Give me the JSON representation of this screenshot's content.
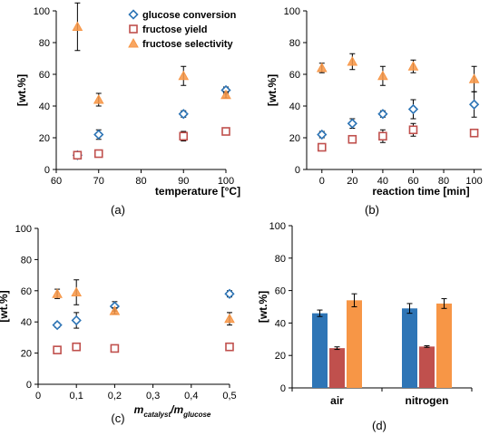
{
  "colors": {
    "glucose": "#2E75B6",
    "fructose_yield": "#C0504D",
    "selectivity": "#F79646",
    "axis": "#000000",
    "tick_text": "#000000"
  },
  "chart_data": [
    {
      "panel": "(a)",
      "type": "scatter",
      "xlabel": "temperature  [°C]",
      "ylabel": "[wt.%]",
      "xlim": [
        60,
        100
      ],
      "ylim": [
        0,
        100
      ],
      "xticks": [
        "60",
        "70",
        "80",
        "90",
        "100"
      ],
      "yticks": [
        "0",
        "20",
        "40",
        "60",
        "80",
        "100"
      ],
      "grid": false,
      "legend": [
        "glucose conversion",
        "fructose yield",
        "fructose selectivity"
      ],
      "legend_position": "top-right",
      "series": [
        {
          "name": "glucose conversion",
          "marker": "diamond",
          "x": [
            65,
            70,
            90,
            100
          ],
          "y": [
            9,
            22,
            35,
            50
          ],
          "err": [
            2,
            3,
            2,
            2
          ]
        },
        {
          "name": "fructose yield",
          "marker": "square",
          "x": [
            65,
            70,
            90,
            100
          ],
          "y": [
            9,
            10,
            21,
            24
          ],
          "err": [
            1,
            1,
            3,
            1.5
          ]
        },
        {
          "name": "fructose selectivity",
          "marker": "triangle",
          "x": [
            65,
            70,
            90,
            100
          ],
          "y": [
            90,
            44,
            59,
            47
          ],
          "err": [
            15,
            4,
            6,
            2
          ]
        }
      ]
    },
    {
      "panel": "(b)",
      "type": "scatter",
      "xlabel": "reaction time  [min]",
      "ylabel": "[wt.%]",
      "xlim": [
        -10,
        105
      ],
      "ylim": [
        0,
        100
      ],
      "xticks": [
        "0",
        "20",
        "40",
        "60",
        "80",
        "100"
      ],
      "yticks": [
        "0",
        "20",
        "40",
        "60",
        "80",
        "100"
      ],
      "grid": false,
      "series": [
        {
          "name": "glucose conversion",
          "marker": "diamond",
          "x": [
            0,
            20,
            40,
            60,
            100
          ],
          "y": [
            22,
            29,
            35,
            38,
            41
          ],
          "err": [
            2,
            3,
            2,
            6,
            8
          ]
        },
        {
          "name": "fructose yield",
          "marker": "square",
          "x": [
            0,
            20,
            40,
            60,
            100
          ],
          "y": [
            14,
            19,
            21,
            25,
            23
          ],
          "err": [
            1,
            1,
            4,
            4,
            1
          ]
        },
        {
          "name": "fructose selectivity",
          "marker": "triangle",
          "x": [
            0,
            20,
            40,
            60,
            100
          ],
          "y": [
            64,
            68,
            59,
            65,
            57
          ],
          "err": [
            3,
            5,
            6,
            4,
            8
          ]
        }
      ]
    },
    {
      "panel": "(c)",
      "type": "scatter",
      "xlabel_main": "m",
      "xlabel_sub1": "catalyst",
      "xlabel_sep": "/m",
      "xlabel_sub2": "glucose",
      "ylabel": "[wt.%]",
      "xlim": [
        0,
        0.5
      ],
      "ylim": [
        0,
        100
      ],
      "xticks": [
        "0",
        "0,1",
        "0,2",
        "0,3",
        "0,4",
        "0,5"
      ],
      "yticks": [
        "0",
        "20",
        "40",
        "60",
        "80",
        "100"
      ],
      "grid": false,
      "series": [
        {
          "name": "glucose conversion",
          "marker": "diamond",
          "x": [
            0.05,
            0.1,
            0.2,
            0.5
          ],
          "y": [
            38,
            41,
            50,
            58
          ],
          "err": [
            1.5,
            5,
            3,
            2
          ]
        },
        {
          "name": "fructose yield",
          "marker": "square",
          "x": [
            0.05,
            0.1,
            0.2,
            0.5
          ],
          "y": [
            22,
            24,
            23,
            24
          ],
          "err": [
            1.5,
            1.5,
            2,
            2
          ]
        },
        {
          "name": "fructose selectivity",
          "marker": "triangle",
          "x": [
            0.05,
            0.1,
            0.2,
            0.5
          ],
          "y": [
            58,
            59,
            47,
            42
          ],
          "err": [
            3,
            8,
            2,
            4
          ]
        }
      ]
    },
    {
      "panel": "(d)",
      "type": "bar",
      "ylabel": "[wt.%]",
      "ylim": [
        0,
        100
      ],
      "yticks": [
        "0",
        "20",
        "40",
        "60",
        "80",
        "100"
      ],
      "grid": false,
      "categories": [
        "air",
        "nitrogen"
      ],
      "series": [
        {
          "name": "glucose conversion",
          "values": [
            46,
            49
          ],
          "err": [
            2,
            3
          ]
        },
        {
          "name": "fructose yield",
          "values": [
            24.5,
            25.5
          ],
          "err": [
            0.8,
            0.5
          ]
        },
        {
          "name": "fructose selectivity",
          "values": [
            54,
            52
          ],
          "err": [
            4,
            3
          ]
        }
      ]
    }
  ]
}
